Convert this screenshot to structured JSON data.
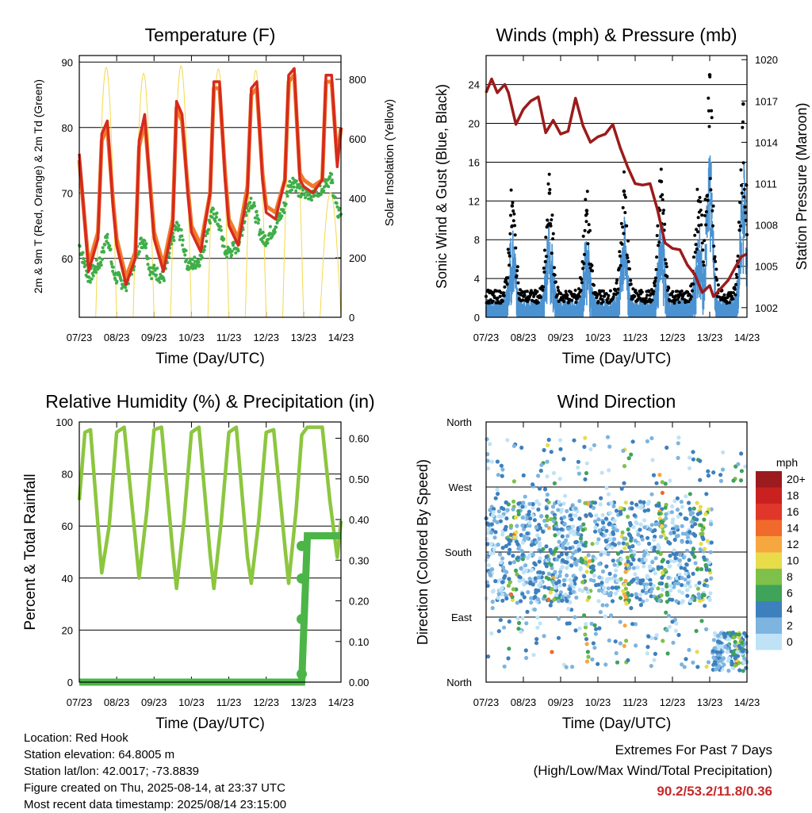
{
  "chart_data": [
    {
      "type": "line",
      "title": "Temperature (F)",
      "xlabel": "Time (Day/UTC)",
      "ylabel": "2m & 9m T (Red, Orange) & 2m Td (Green)",
      "ylabel_right": "Solar Insolation (Yellow)",
      "x_ticks": [
        "07/23",
        "08/23",
        "09/23",
        "10/23",
        "11/23",
        "12/23",
        "13/23",
        "14/23"
      ],
      "ylim": [
        51,
        91
      ],
      "y_ticks": [
        60,
        70,
        80,
        90
      ],
      "ylim_right": [
        0,
        880
      ],
      "y_ticks_right": [
        0,
        200,
        400,
        600,
        800
      ],
      "grid": true,
      "x_days": [
        0,
        0.25,
        0.5,
        0.6,
        0.75,
        0.9,
        1,
        1.25,
        1.5,
        1.6,
        1.75,
        1.9,
        2,
        2.25,
        2.5,
        2.6,
        2.75,
        2.9,
        3,
        3.25,
        3.5,
        3.6,
        3.75,
        3.9,
        4,
        4.25,
        4.5,
        4.6,
        4.75,
        4.9,
        5,
        5.25,
        5.5,
        5.6,
        5.75,
        5.9,
        6,
        6.25,
        6.5,
        6.6,
        6.75,
        6.9,
        7
      ],
      "series": [
        {
          "name": "2m T",
          "color": "#d62a1e",
          "values": [
            76,
            58,
            63,
            79,
            81,
            68,
            62,
            56,
            60,
            78,
            82,
            70,
            63,
            58,
            65,
            84,
            82,
            70,
            64,
            61,
            70,
            87,
            87,
            72,
            65,
            62,
            70,
            86,
            87,
            72,
            67,
            66,
            72,
            88,
            89,
            72,
            71,
            70,
            72,
            88,
            88,
            74,
            80
          ]
        },
        {
          "name": "9m T",
          "color": "#f07a2a",
          "values": [
            75,
            59,
            64,
            78,
            80,
            69,
            63,
            57,
            61,
            77,
            81,
            71,
            64,
            59,
            66,
            83,
            81,
            71,
            65,
            62,
            70,
            86,
            86,
            73,
            66,
            63,
            71,
            85,
            86,
            73,
            68,
            67,
            72,
            87,
            88,
            73,
            72,
            71,
            72,
            87,
            87,
            75,
            80
          ]
        },
        {
          "name": "2m Td",
          "color": "#3fae49",
          "values": [
            62,
            57,
            59,
            60,
            64,
            58,
            57,
            56,
            60,
            62,
            63,
            58,
            58,
            57,
            63,
            65,
            63,
            59,
            59,
            60,
            66,
            67,
            65,
            61,
            61,
            62,
            68,
            69,
            66,
            63,
            63,
            65,
            68,
            71,
            72,
            70,
            70,
            70,
            71,
            72,
            72,
            67,
            67
          ]
        }
      ],
      "solar_series": {
        "name": "Solar Insolation",
        "color": "#f5d84a",
        "peak_values": [
          840,
          820,
          845,
          835,
          830,
          840,
          420,
          845
        ]
      }
    },
    {
      "type": "scatter",
      "title": "Winds (mph) & Pressure (mb)",
      "xlabel": "Time (Day/UTC)",
      "ylabel": "Sonic Wind & Gust (Blue, Black)",
      "ylabel_right": "Station Pressure (Maroon)",
      "x_ticks": [
        "07/23",
        "08/23",
        "09/23",
        "10/23",
        "11/23",
        "12/23",
        "13/23",
        "14/23"
      ],
      "ylim": [
        0,
        27
      ],
      "y_ticks": [
        0,
        4,
        8,
        12,
        16,
        20,
        24
      ],
      "ylim_right": [
        1001.3,
        1020.3
      ],
      "y_ticks_right": [
        1002,
        1005,
        1008,
        1011,
        1014,
        1017,
        1020
      ],
      "grid": true,
      "gust_peaks": [
        {
          "day": 0.7,
          "value": 11.5
        },
        {
          "day": 1.7,
          "value": 12.8
        },
        {
          "day": 2.7,
          "value": 11
        },
        {
          "day": 3.7,
          "value": 13
        },
        {
          "day": 4.7,
          "value": 14
        },
        {
          "day": 5.7,
          "value": 12
        },
        {
          "day": 6.0,
          "value": 25
        },
        {
          "day": 6.9,
          "value": 22
        }
      ],
      "pressure": {
        "name": "Station Pressure",
        "color": "#9b1b1b",
        "x_days": [
          0,
          0.15,
          0.3,
          0.5,
          0.6,
          0.8,
          1.0,
          1.2,
          1.4,
          1.6,
          1.8,
          2.0,
          2.2,
          2.4,
          2.6,
          2.8,
          3.0,
          3.2,
          3.4,
          3.6,
          3.8,
          4.0,
          4.2,
          4.4,
          4.6,
          4.8,
          5.0,
          5.2,
          5.4,
          5.6,
          5.8,
          6.0,
          6.1,
          6.3,
          6.5,
          6.7,
          6.85,
          7.0
        ],
        "values": [
          1017.6,
          1018.6,
          1017.6,
          1018.2,
          1017.6,
          1015.3,
          1016.4,
          1017.0,
          1017.3,
          1014.7,
          1015.6,
          1014.6,
          1014.8,
          1017.2,
          1015.2,
          1014.0,
          1014.4,
          1014.6,
          1015.3,
          1013.6,
          1012.2,
          1011.0,
          1010.9,
          1011.0,
          1009.1,
          1006.7,
          1006.3,
          1006.2,
          1005.1,
          1004.4,
          1003.1,
          1003.6,
          1002.8,
          1003.4,
          1004.0,
          1005.0,
          1005.7,
          1005.9
        ]
      }
    },
    {
      "type": "line",
      "title": "Relative Humidity (%) & Precipitation (in)",
      "xlabel": "Time (Day/UTC)",
      "ylabel": "Percent & Total Rainfall",
      "x_ticks": [
        "07/23",
        "08/23",
        "09/23",
        "10/23",
        "11/23",
        "12/23",
        "13/23",
        "14/23"
      ],
      "ylim": [
        0,
        100
      ],
      "y_ticks": [
        0,
        20,
        40,
        60,
        80,
        100
      ],
      "ylim_right": [
        0,
        0.64
      ],
      "y_ticks_right": [
        "0.00",
        "0.10",
        "0.20",
        "0.30",
        "0.40",
        "0.50",
        "0.60"
      ],
      "grid": true,
      "x_days": [
        0,
        0.15,
        0.3,
        0.5,
        0.6,
        0.8,
        1.0,
        1.2,
        1.5,
        1.6,
        1.8,
        2.0,
        2.2,
        2.5,
        2.6,
        2.8,
        3.0,
        3.2,
        3.5,
        3.6,
        3.8,
        4.0,
        4.2,
        4.5,
        4.6,
        4.8,
        5.0,
        5.2,
        5.5,
        5.6,
        5.8,
        5.95,
        6.1,
        6.3,
        6.5,
        6.7,
        6.9,
        7.0
      ],
      "series": [
        {
          "name": "Relative Humidity",
          "color": "#8cc63f",
          "values": [
            70,
            96,
            97,
            60,
            42,
            60,
            96,
            98,
            55,
            40,
            65,
            97,
            98,
            50,
            36,
            62,
            96,
            98,
            49,
            36,
            62,
            96,
            98,
            48,
            38,
            62,
            96,
            97,
            52,
            38,
            66,
            95,
            98,
            98,
            98,
            70,
            48,
            62
          ]
        },
        {
          "name": "Total Rainfall",
          "color": "#4bb548",
          "values": [
            0,
            0,
            0,
            0,
            0,
            0,
            0,
            0,
            0,
            0,
            0,
            0,
            0,
            0,
            0,
            0,
            0,
            0,
            0,
            0,
            0,
            0,
            0,
            0,
            0,
            0,
            0,
            0,
            0,
            0,
            0,
            0,
            0.36,
            0.36,
            0.36,
            0.36,
            0.36,
            0.36
          ]
        }
      ]
    },
    {
      "type": "scatter",
      "title": "Wind Direction",
      "xlabel": "Time (Day/UTC)",
      "ylabel": "Direction (Colored By Speed)",
      "x_ticks": [
        "07/23",
        "08/23",
        "09/23",
        "10/23",
        "11/23",
        "12/23",
        "13/23",
        "14/23"
      ],
      "y_ticks": [
        "North",
        "East",
        "South",
        "West",
        "North"
      ],
      "ylim": [
        0,
        360
      ],
      "grid": true,
      "colorbar": {
        "title": "mph",
        "labels": [
          "20+",
          "18",
          "16",
          "14",
          "12",
          "10",
          "8",
          "6",
          "4",
          "2",
          "0"
        ],
        "colors": [
          "#9b1b1e",
          "#c9211f",
          "#e0372a",
          "#f06a2b",
          "#f7a740",
          "#e8dc4b",
          "#7fc04a",
          "#3fa35a",
          "#3d80be",
          "#7db4e0",
          "#bfe2f6"
        ]
      }
    }
  ],
  "info": {
    "location": "Location: Red Hook",
    "elevation": "Station elevation: 64.8005 m",
    "latlon": "Station lat/lon: 42.0017; -73.8839",
    "created": "Figure created on Thu, 2025-08-14, at 23:37 UTC",
    "recent": "Most recent data timestamp: 2025/08/14 23:15:00"
  },
  "extremes": {
    "title": "Extremes For Past 7 Days",
    "subtitle": "(High/Low/Max Wind/Total Precipitation)",
    "values": "90.2/53.2/11.8/0.36"
  }
}
